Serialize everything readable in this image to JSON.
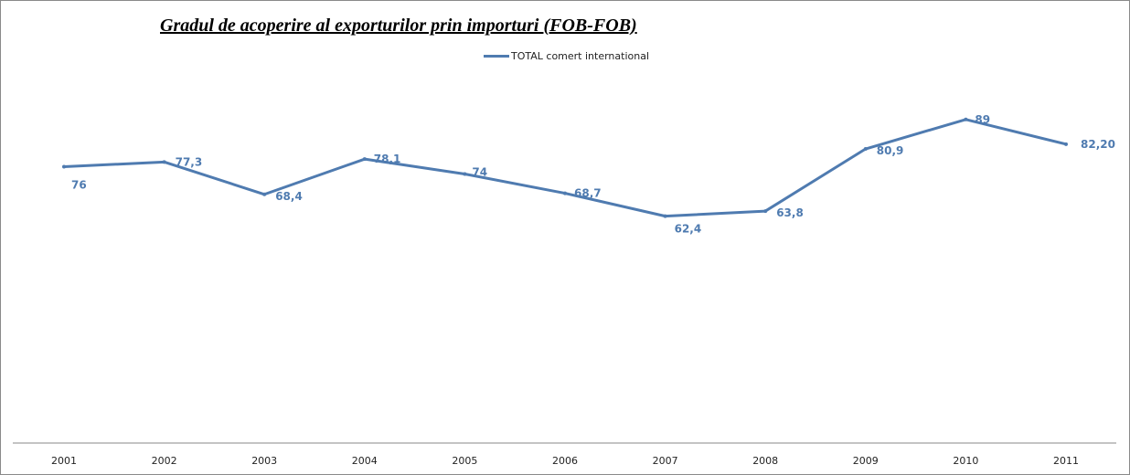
{
  "chart_data": {
    "type": "line",
    "title": "Gradul de acoperire al exporturilor prin importuri  (FOB-FOB)",
    "xlabel": "",
    "ylabel": "",
    "categories": [
      "2001",
      "2002",
      "2003",
      "2004",
      "2005",
      "2006",
      "2007",
      "2008",
      "2009",
      "2010",
      "2011"
    ],
    "series": [
      {
        "name": "TOTAL comert international",
        "color": "#4f7bb0",
        "values": [
          76,
          77.3,
          68.4,
          78.1,
          74,
          68.7,
          62.4,
          63.8,
          80.9,
          89,
          82.2
        ],
        "labels": [
          "76",
          "77,3",
          "68,4",
          "78,1",
          "74",
          "68,7",
          "62,4",
          "63,8",
          "80,9",
          "89",
          "82,20"
        ]
      }
    ],
    "ylim": [
      0,
      100
    ],
    "grid": false,
    "legend": "top-center",
    "y_axis_visible": false
  }
}
